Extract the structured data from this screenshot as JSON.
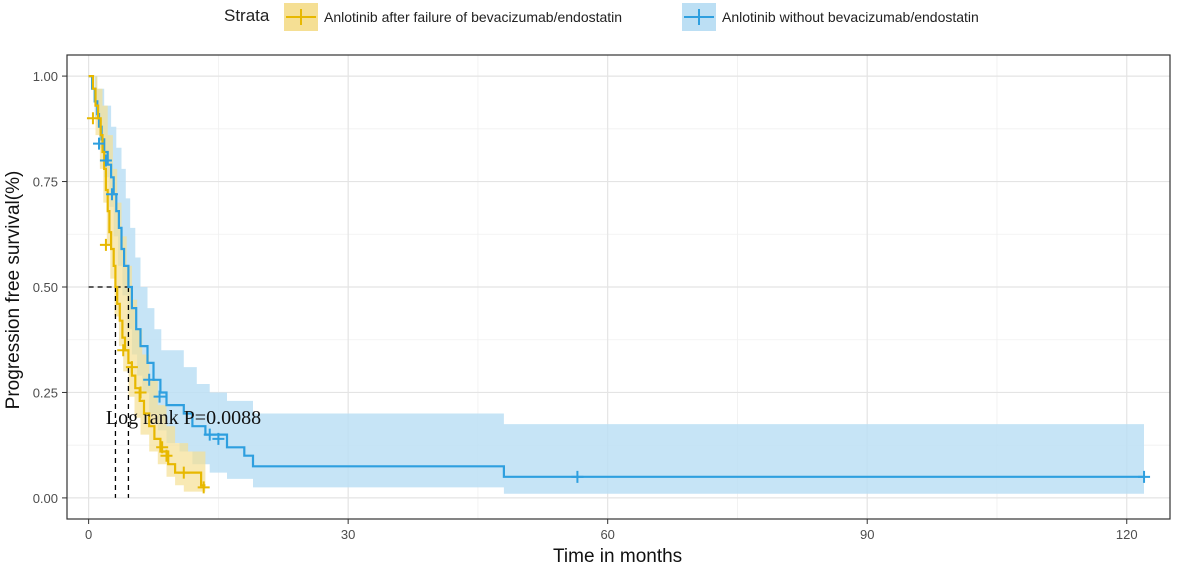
{
  "chart_data": {
    "type": "line",
    "subtype": "kaplan-meier",
    "xlabel": "Time in months",
    "ylabel": "Progression free survival(%)",
    "xlim": [
      -2.5,
      125
    ],
    "ylim": [
      -0.05,
      1.05
    ],
    "x_ticks": [
      0,
      30,
      60,
      90,
      120
    ],
    "x_tick_labels": [
      "0",
      "30",
      "60",
      "90",
      "120"
    ],
    "y_ticks": [
      0,
      0.25,
      0.5,
      0.75,
      1.0
    ],
    "y_tick_labels": [
      "0.00",
      "0.25",
      "0.50",
      "0.75",
      "1.00"
    ],
    "grid": true,
    "legend": {
      "title": "Strata",
      "position": "top"
    },
    "annotation": "Log rank P=0.0088",
    "median_lines": [
      {
        "x": 3.1,
        "y": 0.5
      },
      {
        "x": 4.6,
        "y": 0.5
      }
    ],
    "series": [
      {
        "name": "Anlotinib after failure of bevacizumab/endostatin",
        "color": "#E7B800",
        "band_color": "#F5DF94",
        "steps": [
          [
            0,
            1.0
          ],
          [
            0.5,
            0.97
          ],
          [
            0.8,
            0.93
          ],
          [
            1.1,
            0.9
          ],
          [
            1.4,
            0.86
          ],
          [
            1.6,
            0.82
          ],
          [
            1.8,
            0.78
          ],
          [
            2.0,
            0.73
          ],
          [
            2.2,
            0.68
          ],
          [
            2.4,
            0.63
          ],
          [
            2.6,
            0.59
          ],
          [
            2.9,
            0.55
          ],
          [
            3.1,
            0.5
          ],
          [
            3.3,
            0.46
          ],
          [
            3.6,
            0.42
          ],
          [
            3.9,
            0.38
          ],
          [
            4.2,
            0.35
          ],
          [
            4.6,
            0.32
          ],
          [
            5.0,
            0.29
          ],
          [
            5.4,
            0.26
          ],
          [
            5.9,
            0.23
          ],
          [
            6.4,
            0.2
          ],
          [
            7.0,
            0.17
          ],
          [
            7.6,
            0.14
          ],
          [
            8.3,
            0.11
          ],
          [
            9.2,
            0.08
          ],
          [
            10.0,
            0.06
          ],
          [
            13.0,
            0.03
          ],
          [
            13.5,
            0.03
          ]
        ],
        "upper": [
          [
            0,
            1.0
          ],
          [
            1.0,
            0.97
          ],
          [
            1.6,
            0.93
          ],
          [
            2.2,
            0.86
          ],
          [
            2.8,
            0.78
          ],
          [
            3.3,
            0.7
          ],
          [
            3.8,
            0.62
          ],
          [
            4.4,
            0.55
          ],
          [
            5.0,
            0.47
          ],
          [
            5.6,
            0.4
          ],
          [
            6.2,
            0.34
          ],
          [
            7.0,
            0.28
          ],
          [
            8.0,
            0.22
          ],
          [
            9.0,
            0.17
          ],
          [
            10.0,
            0.13
          ],
          [
            11.5,
            0.11
          ],
          [
            13.5,
            0.11
          ]
        ],
        "lower": [
          [
            0,
            1.0
          ],
          [
            0.8,
            0.86
          ],
          [
            1.3,
            0.78
          ],
          [
            1.7,
            0.7
          ],
          [
            2.1,
            0.6
          ],
          [
            2.5,
            0.52
          ],
          [
            3.0,
            0.43
          ],
          [
            3.5,
            0.36
          ],
          [
            4.0,
            0.3
          ],
          [
            4.6,
            0.24
          ],
          [
            5.3,
            0.19
          ],
          [
            6.0,
            0.15
          ],
          [
            7.0,
            0.11
          ],
          [
            8.0,
            0.08
          ],
          [
            9.0,
            0.05
          ],
          [
            10.0,
            0.03
          ],
          [
            11.0,
            0.015
          ],
          [
            13.5,
            0.005
          ]
        ],
        "censor": [
          [
            0.5,
            0.9
          ],
          [
            2.0,
            0.6
          ],
          [
            4.0,
            0.35
          ],
          [
            5.0,
            0.31
          ],
          [
            6.0,
            0.25
          ],
          [
            8.5,
            0.12
          ],
          [
            9.0,
            0.1
          ],
          [
            11.0,
            0.06
          ],
          [
            13.3,
            0.025
          ]
        ]
      },
      {
        "name": "Anlotinib without bevacizumab/endostatin",
        "color": "#2E9FDF",
        "band_color": "#BCDFF4",
        "steps": [
          [
            0,
            1.0
          ],
          [
            0.4,
            0.97
          ],
          [
            0.7,
            0.94
          ],
          [
            1.0,
            0.91
          ],
          [
            1.2,
            0.88
          ],
          [
            1.5,
            0.85
          ],
          [
            1.8,
            0.82
          ],
          [
            2.2,
            0.79
          ],
          [
            2.6,
            0.76
          ],
          [
            2.9,
            0.72
          ],
          [
            3.2,
            0.68
          ],
          [
            3.5,
            0.64
          ],
          [
            3.8,
            0.59
          ],
          [
            4.1,
            0.55
          ],
          [
            4.6,
            0.5
          ],
          [
            5.0,
            0.45
          ],
          [
            5.5,
            0.4
          ],
          [
            6.0,
            0.36
          ],
          [
            6.8,
            0.32
          ],
          [
            7.5,
            0.28
          ],
          [
            8.3,
            0.25
          ],
          [
            9.0,
            0.22
          ],
          [
            11.0,
            0.2
          ],
          [
            12.0,
            0.17
          ],
          [
            13.5,
            0.15
          ],
          [
            16.0,
            0.12
          ],
          [
            18.0,
            0.1
          ],
          [
            19.0,
            0.075
          ],
          [
            47.5,
            0.075
          ],
          [
            48.0,
            0.05
          ],
          [
            122.0,
            0.05
          ]
        ],
        "upper": [
          [
            0,
            1.0
          ],
          [
            1.0,
            0.97
          ],
          [
            1.8,
            0.93
          ],
          [
            2.6,
            0.88
          ],
          [
            3.2,
            0.83
          ],
          [
            3.8,
            0.78
          ],
          [
            4.3,
            0.71
          ],
          [
            4.8,
            0.64
          ],
          [
            5.4,
            0.57
          ],
          [
            6.0,
            0.5
          ],
          [
            6.8,
            0.45
          ],
          [
            7.6,
            0.4
          ],
          [
            8.4,
            0.35
          ],
          [
            11.0,
            0.31
          ],
          [
            12.5,
            0.27
          ],
          [
            14.0,
            0.25
          ],
          [
            16.0,
            0.23
          ],
          [
            19.0,
            0.2
          ],
          [
            47.5,
            0.2
          ],
          [
            48.0,
            0.175
          ],
          [
            122.0,
            0.175
          ]
        ],
        "lower": [
          [
            0,
            1.0
          ],
          [
            0.7,
            0.9
          ],
          [
            1.2,
            0.83
          ],
          [
            1.8,
            0.76
          ],
          [
            2.4,
            0.69
          ],
          [
            2.9,
            0.62
          ],
          [
            3.4,
            0.55
          ],
          [
            3.9,
            0.48
          ],
          [
            4.5,
            0.4
          ],
          [
            5.0,
            0.34
          ],
          [
            5.6,
            0.29
          ],
          [
            6.2,
            0.25
          ],
          [
            7.0,
            0.2
          ],
          [
            8.0,
            0.16
          ],
          [
            9.0,
            0.13
          ],
          [
            10.5,
            0.11
          ],
          [
            12.0,
            0.08
          ],
          [
            14.0,
            0.06
          ],
          [
            16.0,
            0.045
          ],
          [
            19.0,
            0.025
          ],
          [
            48.0,
            0.01
          ],
          [
            122.0,
            0.01
          ]
        ],
        "censor": [
          [
            1.2,
            0.84
          ],
          [
            2.0,
            0.8
          ],
          [
            2.7,
            0.72
          ],
          [
            7.0,
            0.28
          ],
          [
            8.2,
            0.24
          ],
          [
            14.0,
            0.15
          ],
          [
            15.0,
            0.14
          ],
          [
            56.5,
            0.05
          ],
          [
            122.0,
            0.05
          ]
        ]
      }
    ]
  }
}
